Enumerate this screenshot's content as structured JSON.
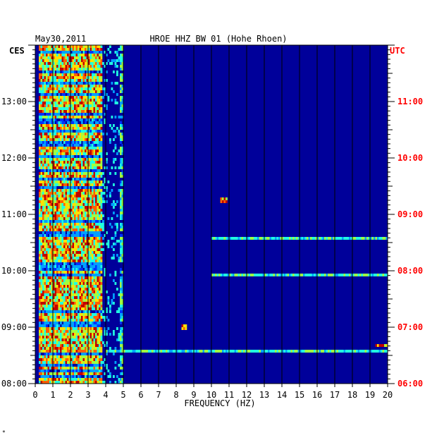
{
  "header": {
    "date": "May30,2011",
    "station": "HROE HHZ BW 01 (Hohe Rhoen)",
    "left_zone": "CES",
    "right_zone": "UTC"
  },
  "footnote": "*",
  "colors": {
    "background": "#00009a",
    "left_axis_text": "#000000",
    "right_axis_text": "#ff0000",
    "colormap": [
      "#00009a",
      "#0033ff",
      "#00a0ff",
      "#20ffe0",
      "#a0ff40",
      "#ffe000",
      "#ff6000",
      "#c00000"
    ]
  },
  "chart_data": {
    "type": "heatmap",
    "title": "HROE HHZ BW 01 (Hohe Rhoen)",
    "date": "May30,2011",
    "xlabel": "FREQUENCY (HZ)",
    "x_ticks": [
      "0",
      "1",
      "2",
      "3",
      "4",
      "5",
      "6",
      "7",
      "8",
      "9",
      "10",
      "11",
      "12",
      "13",
      "14",
      "15",
      "16",
      "17",
      "18",
      "19",
      "20"
    ],
    "xlim": [
      0,
      20
    ],
    "y_left_label": "CES",
    "y_right_label": "UTC",
    "y_left_ticks": [
      "08:00",
      "09:00",
      "10:00",
      "11:00",
      "12:00",
      "13:00"
    ],
    "y_right_ticks": [
      "06:00",
      "07:00",
      "08:00",
      "09:00",
      "10:00",
      "11:00"
    ],
    "time_range_hours_cest": [
      8.0,
      14.0
    ],
    "vertical_gridlines_every_hz": 1,
    "energy_bands_hz": [
      {
        "from": 0.2,
        "to": 3.8,
        "level": "high"
      },
      {
        "from": 4.8,
        "to": 5.0,
        "level": "medium"
      }
    ],
    "notable_events": [
      {
        "time_cest": "08:35",
        "from_hz": 4.0,
        "to_hz": 20.0,
        "level": "medium"
      },
      {
        "time_cest": "08:40",
        "from_hz": 19.3,
        "to_hz": 20.0,
        "level": "high"
      },
      {
        "time_cest": "09:00",
        "from_hz": 8.3,
        "to_hz": 8.6,
        "level": "high"
      },
      {
        "time_cest": "09:55",
        "from_hz": 10.0,
        "to_hz": 20.0,
        "level": "medium"
      },
      {
        "time_cest": "10:35",
        "from_hz": 10.0,
        "to_hz": 20.0,
        "level": "medium"
      },
      {
        "time_cest": "11:15",
        "from_hz": 10.5,
        "to_hz": 10.9,
        "level": "high"
      }
    ]
  }
}
